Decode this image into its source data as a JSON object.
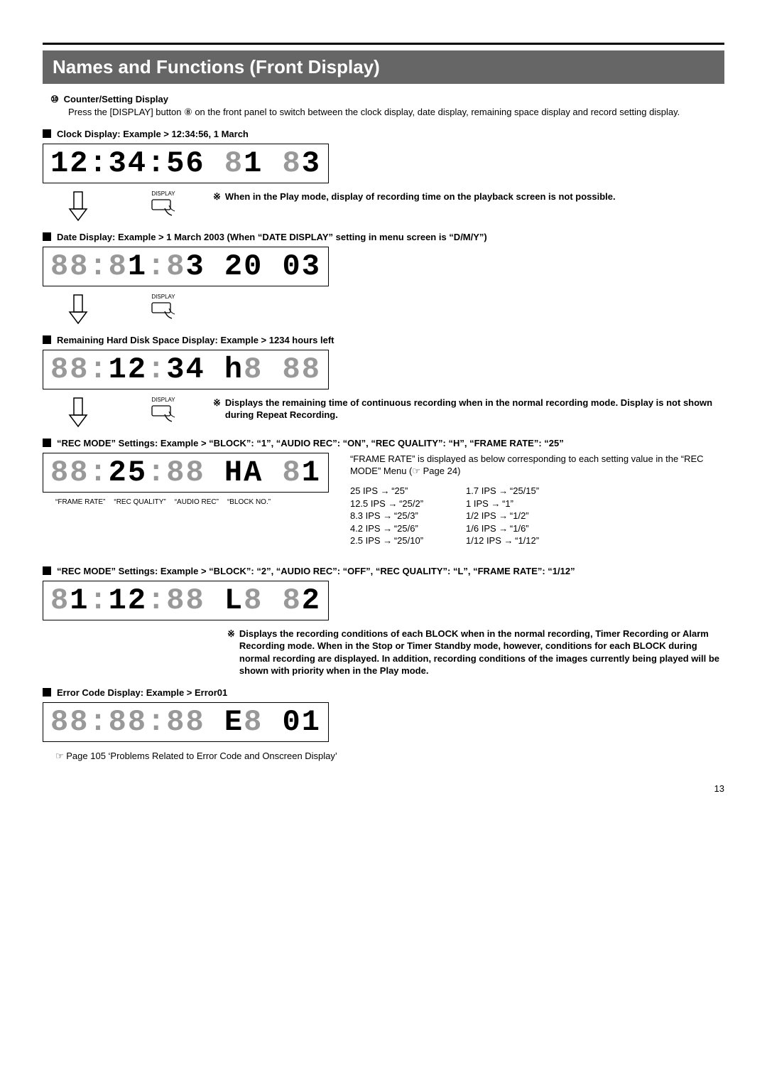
{
  "titleBar": "Names and Functions (Front Display)",
  "intro": {
    "num": "⑩",
    "refNum": "⑧",
    "title": "Counter/Setting Display",
    "body": "Press the [DISPLAY] button {ref} on the front panel to switch between the clock display, date display, remaining space display and record setting display."
  },
  "sections": {
    "clock": {
      "head": "Clock Display: Example > 12:34:56, 1 March",
      "note": "When in the Play mode, display of recording time on the playback screen is not possible."
    },
    "date": {
      "head": "Date Display: Example > 1 March 2003 (When “DATE DISPLAY” setting in menu screen is “D/M/Y”)"
    },
    "remain": {
      "head": "Remaining Hard Disk Space Display: Example > 1234 hours left",
      "note": "Displays the remaining time of continuous recording when in the normal recording mode. Display is not shown during Repeat Recording."
    },
    "rec1": {
      "head": "“REC MODE” Settings: Example > “BLOCK”: “1”, “AUDIO REC”: “ON”, “REC QUALITY”: “H”, “FRAME RATE”: “25”",
      "labels": [
        "“FRAME RATE”",
        "“REC QUALITY”",
        "“AUDIO REC”",
        "“BLOCK NO.”"
      ],
      "desc": "“FRAME RATE” is displayed as below corresponding to each setting value in the “REC MODE” Menu (☞ Page 24)",
      "ipsLeft": [
        {
          "a": "25 IPS",
          "b": "“25”"
        },
        {
          "a": "12.5 IPS",
          "b": "“25/2”"
        },
        {
          "a": "8.3 IPS",
          "b": "“25/3”"
        },
        {
          "a": "4.2 IPS",
          "b": "“25/6”"
        },
        {
          "a": "2.5 IPS",
          "b": "“25/10”"
        }
      ],
      "ipsRight": [
        {
          "a": "1.7 IPS",
          "b": "“25/15”"
        },
        {
          "a": "1 IPS",
          "b": "“1”"
        },
        {
          "a": "1/2 IPS",
          "b": "“1/2”"
        },
        {
          "a": "1/6 IPS",
          "b": "“1/6”"
        },
        {
          "a": "1/12 IPS",
          "b": "“1/12”"
        }
      ]
    },
    "rec2": {
      "head": "“REC MODE” Settings: Example > “BLOCK”: “2”, “AUDIO REC”: “OFF”, “REC QUALITY”: “L”, “FRAME RATE”: “1/12”",
      "note": "Displays the recording conditions of each BLOCK when in the normal recording, Timer Recording or Alarm Recording mode. When in the Stop or Timer Standby mode, however, conditions for each BLOCK during normal recording are displayed. In addition, recording conditions of the images currently being played will be shown with priority when in the Play mode."
    },
    "error": {
      "head": "Error Code Display: Example > Error01",
      "ref": "☞ Page 105 ‘Problems Related to Error Code and Onscreen Display’"
    }
  },
  "displayLabel": "DISPLAY",
  "pageNum": "13",
  "style": {
    "titleBg": "#666666",
    "dimColor": "#999999",
    "segFontSize": 42
  }
}
